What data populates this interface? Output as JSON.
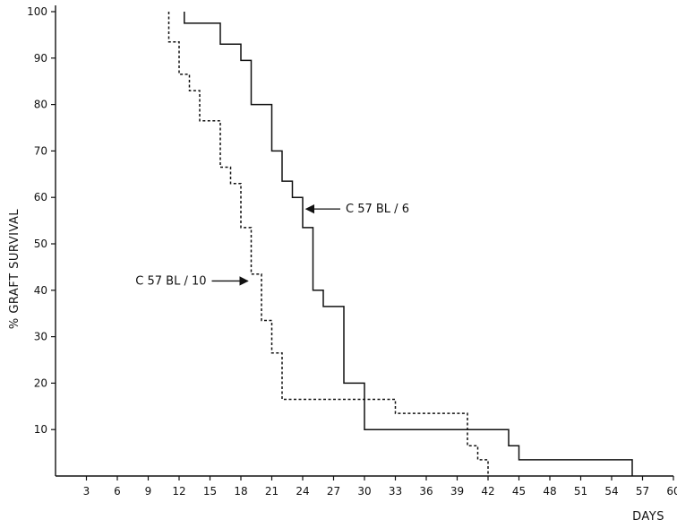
{
  "chart_data": {
    "type": "line",
    "title": "",
    "xlabel": "DAYS",
    "ylabel": "% GRAFT SURVIVAL",
    "xlim": [
      0,
      60
    ],
    "ylim": [
      0,
      100
    ],
    "grid": false,
    "x_ticks": [
      3,
      6,
      9,
      12,
      15,
      18,
      21,
      24,
      27,
      30,
      33,
      36,
      39,
      42,
      45,
      48,
      51,
      54,
      57,
      60
    ],
    "y_ticks": [
      10,
      20,
      30,
      40,
      50,
      60,
      70,
      80,
      90,
      100
    ],
    "series": [
      {
        "name": "C 57 BL / 6",
        "style": "solid",
        "color": "#111111",
        "points": [
          [
            12.5,
            100
          ],
          [
            12.5,
            97.5
          ],
          [
            16,
            97.5
          ],
          [
            16,
            93
          ],
          [
            18,
            93
          ],
          [
            18,
            89.5
          ],
          [
            19,
            89.5
          ],
          [
            19,
            80
          ],
          [
            21,
            80
          ],
          [
            21,
            70
          ],
          [
            22,
            70
          ],
          [
            22,
            63.5
          ],
          [
            23,
            63.5
          ],
          [
            23,
            60
          ],
          [
            24,
            60
          ],
          [
            24,
            53.5
          ],
          [
            25,
            53.5
          ],
          [
            25,
            40
          ],
          [
            26,
            40
          ],
          [
            26,
            36.5
          ],
          [
            28,
            36.5
          ],
          [
            28,
            20
          ],
          [
            30,
            20
          ],
          [
            30,
            10
          ],
          [
            44,
            10
          ],
          [
            44,
            6.5
          ],
          [
            45,
            6.5
          ],
          [
            45,
            3.5
          ],
          [
            56,
            3.5
          ],
          [
            56,
            0
          ]
        ]
      },
      {
        "name": "C 57 BL / 10",
        "style": "dashed",
        "color": "#111111",
        "points": [
          [
            11,
            100
          ],
          [
            11,
            93.5
          ],
          [
            12,
            93.5
          ],
          [
            12,
            86.5
          ],
          [
            13,
            86.5
          ],
          [
            13,
            83
          ],
          [
            14,
            83
          ],
          [
            14,
            76.5
          ],
          [
            16,
            76.5
          ],
          [
            16,
            66.5
          ],
          [
            17,
            66.5
          ],
          [
            17,
            63
          ],
          [
            18,
            63
          ],
          [
            18,
            53.5
          ],
          [
            19,
            53.5
          ],
          [
            19,
            43.5
          ],
          [
            20,
            43.5
          ],
          [
            20,
            33.5
          ],
          [
            21,
            33.5
          ],
          [
            21,
            26.5
          ],
          [
            22,
            26.5
          ],
          [
            22,
            16.5
          ],
          [
            30,
            16.5
          ],
          [
            30,
            16.5
          ],
          [
            33,
            16.5
          ],
          [
            33,
            13.5
          ],
          [
            40,
            13.5
          ],
          [
            40,
            6.5
          ],
          [
            41,
            6.5
          ],
          [
            41,
            3.5
          ],
          [
            42,
            3.5
          ],
          [
            42,
            0
          ]
        ]
      }
    ],
    "annotations": [
      {
        "text": "C 57 BL / 6",
        "series": "C 57 BL / 6",
        "points_to": [
          24,
          57.5
        ]
      },
      {
        "text": "C 57 BL / 10",
        "series": "C 57 BL / 10",
        "points_to": [
          19,
          42
        ]
      }
    ]
  }
}
